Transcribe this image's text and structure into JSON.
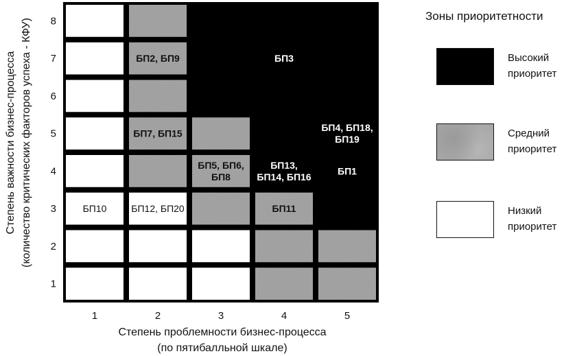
{
  "chart_data": {
    "type": "heatmap",
    "xlabel": [
      "Степень проблемности бизнес-процесса",
      "(по пятибалльной шкале)"
    ],
    "ylabel": [
      "Степень важности бизнес-процесса",
      "(количество критических факторов успеха - КФУ)"
    ],
    "x_ticks": [
      "1",
      "2",
      "3",
      "4",
      "5"
    ],
    "y_ticks": [
      "1",
      "2",
      "3",
      "4",
      "5",
      "6",
      "7",
      "8"
    ],
    "zone_colors": {
      "high": "#000000",
      "medium": "#a8a8a8",
      "low": "#ffffff"
    },
    "zones": [
      [
        "low",
        "low",
        "low",
        "medium",
        "medium"
      ],
      [
        "low",
        "low",
        "low",
        "medium",
        "medium"
      ],
      [
        "low",
        "low",
        "medium",
        "medium",
        "high"
      ],
      [
        "low",
        "medium",
        "medium",
        "high",
        "high"
      ],
      [
        "low",
        "medium",
        "medium",
        "high",
        "high"
      ],
      [
        "low",
        "medium",
        "high",
        "high",
        "high"
      ],
      [
        "low",
        "medium",
        "high",
        "high",
        "high"
      ],
      [
        "low",
        "medium",
        "high",
        "high",
        "high"
      ]
    ],
    "labels": [
      {
        "x": 1,
        "y": 3,
        "lines": [
          "БП10"
        ]
      },
      {
        "x": 2,
        "y": 3,
        "lines": [
          "БП12, БП20"
        ]
      },
      {
        "x": 4,
        "y": 3,
        "lines": [
          "БП11"
        ]
      },
      {
        "x": 3,
        "y": 4,
        "lines": [
          "БП5, БП6,",
          "БП8"
        ]
      },
      {
        "x": 4,
        "y": 4,
        "lines": [
          "БП13,",
          "БП14, БП16"
        ]
      },
      {
        "x": 5,
        "y": 4,
        "lines": [
          "БП1"
        ]
      },
      {
        "x": 2,
        "y": 5,
        "lines": [
          "БП7, БП15"
        ]
      },
      {
        "x": 5,
        "y": 5,
        "lines": [
          "БП4, БП18,",
          "БП19"
        ]
      },
      {
        "x": 2,
        "y": 7,
        "lines": [
          "БП2, БП9"
        ]
      },
      {
        "x": 4,
        "y": 7,
        "lines": [
          "БП3"
        ]
      }
    ]
  },
  "legend": {
    "title": "Зоны приоритетности",
    "items": [
      {
        "zone": "high",
        "label": "Высокий приоритет"
      },
      {
        "zone": "medium",
        "label": "Средний приоритет"
      },
      {
        "zone": "low",
        "label": "Низкий приоритет"
      }
    ]
  }
}
